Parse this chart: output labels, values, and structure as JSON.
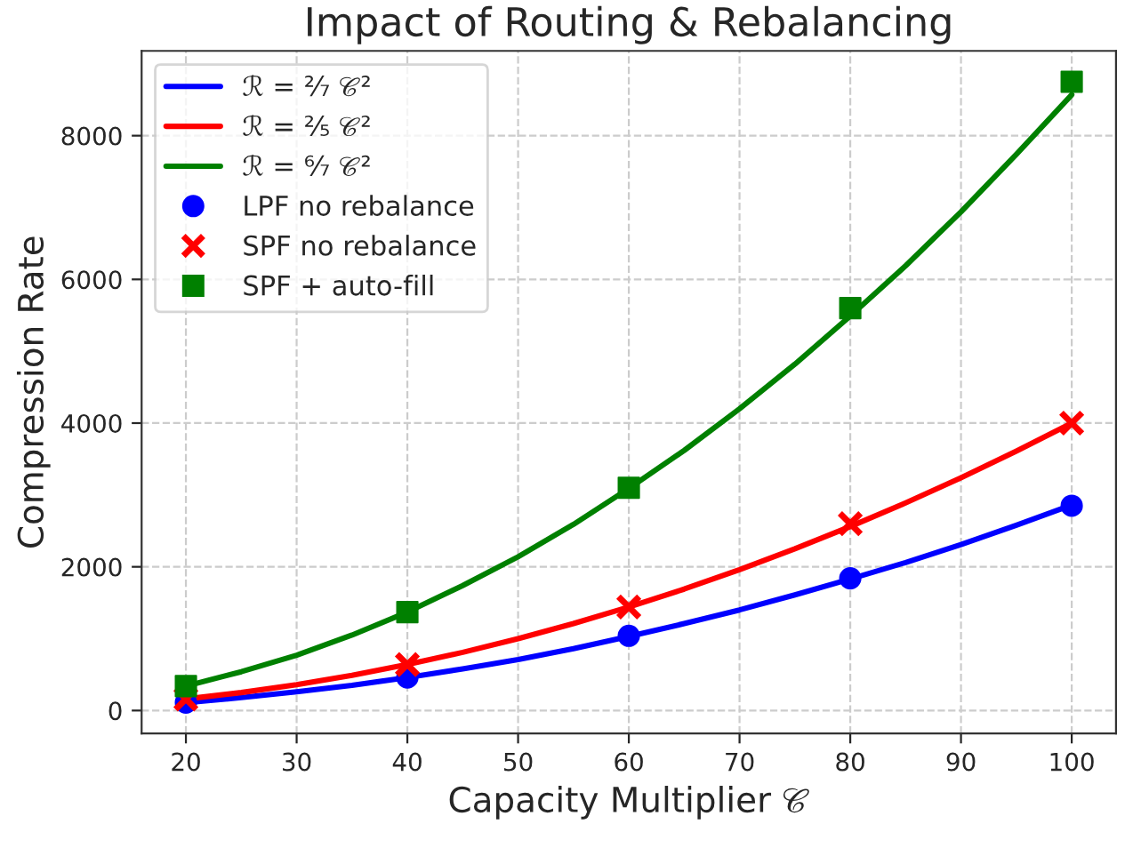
{
  "chart_data": {
    "type": "line",
    "title": "Impact of Routing & Rebalancing",
    "xlabel": "Capacity Multiplier 𝒞",
    "ylabel": "Compression Rate",
    "xlim": [
      16,
      104
    ],
    "ylim": [
      -320,
      9180
    ],
    "xticks": [
      20,
      30,
      40,
      50,
      60,
      70,
      80,
      90,
      100
    ],
    "yticks": [
      0,
      2000,
      4000,
      6000,
      8000
    ],
    "grid": true,
    "legend": "top left",
    "series": [
      {
        "name": "ℛ = ²⁄₇ 𝒞²",
        "color": "#0000ff",
        "x": [
          20,
          25,
          30,
          35,
          40,
          45,
          50,
          55,
          60,
          65,
          70,
          75,
          80,
          85,
          90,
          95,
          100
        ],
        "values": [
          110,
          180,
          260,
          350,
          460,
          580,
          710,
          860,
          1030,
          1210,
          1400,
          1610,
          1830,
          2060,
          2310,
          2580,
          2860
        ]
      },
      {
        "name": "ℛ = ²⁄₅ 𝒞²",
        "color": "#ff0000",
        "x": [
          20,
          25,
          30,
          35,
          40,
          45,
          50,
          55,
          60,
          65,
          70,
          75,
          80,
          85,
          90,
          95,
          100
        ],
        "values": [
          160,
          250,
          360,
          490,
          640,
          810,
          1000,
          1210,
          1440,
          1690,
          1960,
          2250,
          2560,
          2890,
          3240,
          3610,
          4000
        ]
      },
      {
        "name": "ℛ = ⁶⁄₇ 𝒞²",
        "color": "#008000",
        "x": [
          20,
          25,
          30,
          35,
          40,
          45,
          50,
          55,
          60,
          65,
          70,
          75,
          80,
          85,
          90,
          95,
          100
        ],
        "values": [
          340,
          540,
          770,
          1050,
          1370,
          1740,
          2140,
          2590,
          3090,
          3620,
          4200,
          4820,
          5490,
          6190,
          6940,
          7740,
          8570
        ]
      },
      {
        "name": "LPF no rebalance",
        "type": "scatter",
        "marker": "circle",
        "color": "#0000ff",
        "x": [
          20,
          40,
          60,
          80,
          100
        ],
        "values": [
          110,
          460,
          1040,
          1840,
          2850
        ]
      },
      {
        "name": "SPF no rebalance",
        "type": "scatter",
        "marker": "cross",
        "color": "#ff0000",
        "x": [
          20,
          40,
          60,
          80,
          100
        ],
        "values": [
          160,
          640,
          1440,
          2600,
          4000
        ]
      },
      {
        "name": "SPF + auto-fill",
        "type": "scatter",
        "marker": "square",
        "color": "#008000",
        "x": [
          20,
          40,
          60,
          80,
          100
        ],
        "values": [
          340,
          1370,
          3100,
          5600,
          8750
        ]
      }
    ]
  }
}
